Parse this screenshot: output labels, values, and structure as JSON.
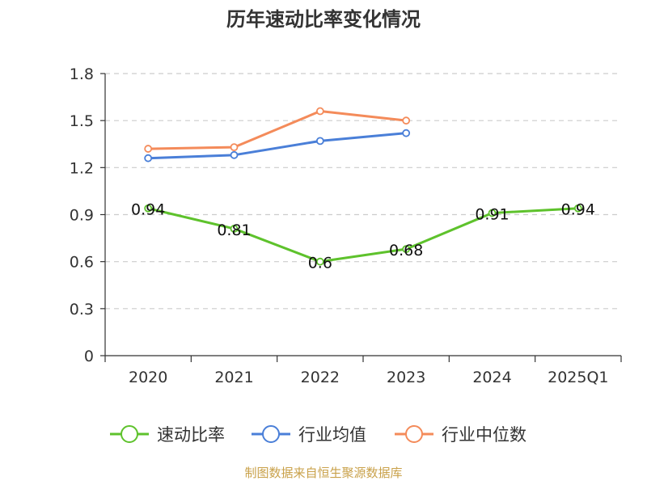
{
  "chart_data": {
    "type": "line",
    "title": "历年速动比率变化情况",
    "categories": [
      "2020",
      "2021",
      "2022",
      "2023",
      "2024",
      "2025Q1"
    ],
    "ylim": [
      0,
      1.8
    ],
    "yticks": [
      "0",
      "0.3",
      "0.6",
      "0.9",
      "1.2",
      "1.5",
      "1.8"
    ],
    "grid": true,
    "legend_position": "bottom",
    "series": [
      {
        "name": "速动比率",
        "color": "#5ec22c",
        "values": [
          0.94,
          0.81,
          0.6,
          0.68,
          0.91,
          0.94
        ],
        "labels": [
          "0.94",
          "0.81",
          "0.6",
          "0.68",
          "0.91",
          "0.94"
        ],
        "show_labels": true
      },
      {
        "name": "行业均值",
        "color": "#4a7fd8",
        "values": [
          1.26,
          1.28,
          1.37,
          1.42,
          null,
          null
        ],
        "show_labels": false
      },
      {
        "name": "行业中位数",
        "color": "#f48b5a",
        "values": [
          1.32,
          1.33,
          1.56,
          1.5,
          null,
          null
        ],
        "show_labels": false
      }
    ]
  },
  "footer": {
    "source": "制图数据来自恒生聚源数据库"
  }
}
